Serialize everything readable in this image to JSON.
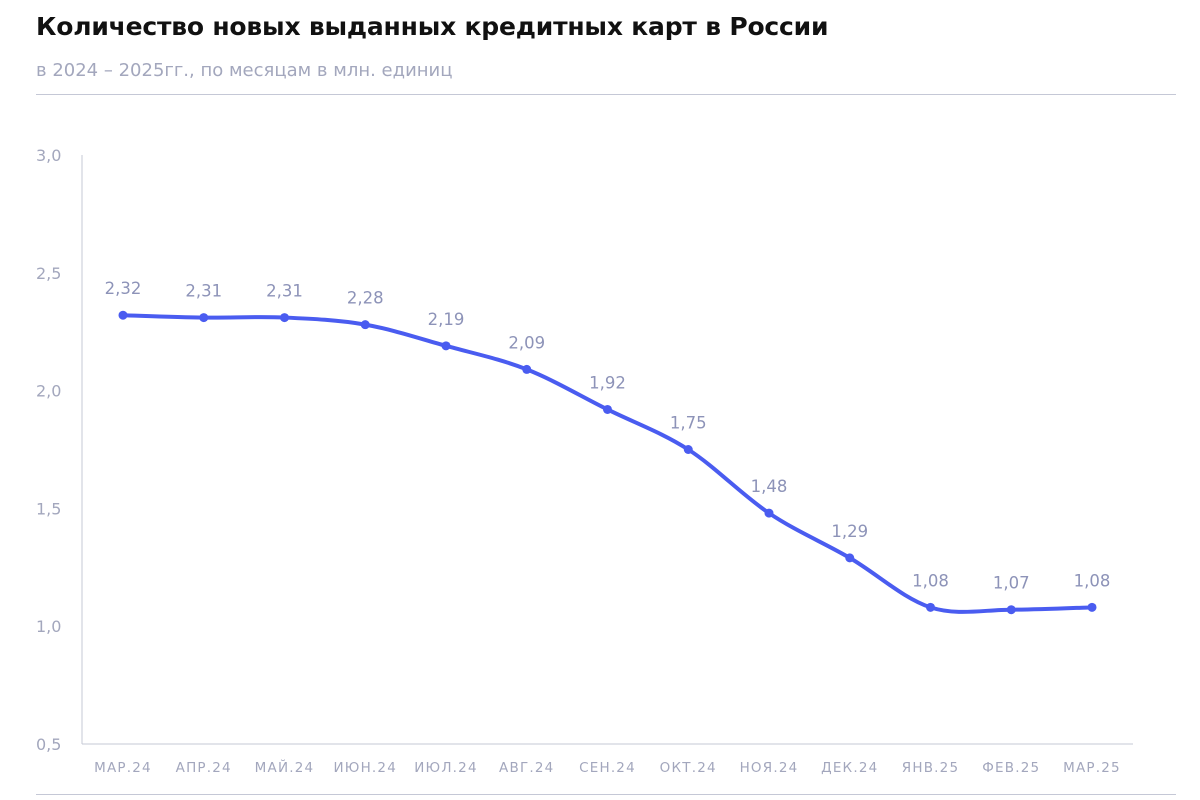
{
  "header": {
    "title": "Количество новых выданных кредитных карт в России",
    "subtitle": "в 2024 – 2025гг., по месяцам в млн. единиц"
  },
  "colors": {
    "line": "#4a5cf0",
    "axis": "#c5c8d6",
    "tick_text": "#a3a7bd",
    "label_text": "#8d93b8"
  },
  "chart_data": {
    "type": "line",
    "categories": [
      "МАР.24",
      "АПР.24",
      "МАЙ.24",
      "ИЮН.24",
      "ИЮЛ.24",
      "АВГ.24",
      "СЕН.24",
      "ОКТ.24",
      "НОЯ.24",
      "ДЕК.24",
      "ЯНВ.25",
      "ФЕВ.25",
      "МАР.25"
    ],
    "values": [
      2.32,
      2.31,
      2.31,
      2.28,
      2.19,
      2.09,
      1.92,
      1.75,
      1.48,
      1.29,
      1.08,
      1.07,
      1.08
    ],
    "data_labels": [
      "2,32",
      "2,31",
      "2,31",
      "2,28",
      "2,19",
      "2,09",
      "1,92",
      "1,75",
      "1,48",
      "1,29",
      "1,08",
      "1,07",
      "1,08"
    ],
    "yticks": [
      0.5,
      1.0,
      1.5,
      2.0,
      2.5,
      3.0
    ],
    "ytick_labels": [
      "0,5",
      "1,0",
      "1,5",
      "2,0",
      "2,5",
      "3,0"
    ],
    "ylim": [
      0.5,
      3.0
    ],
    "grid": false,
    "legend": "none"
  }
}
